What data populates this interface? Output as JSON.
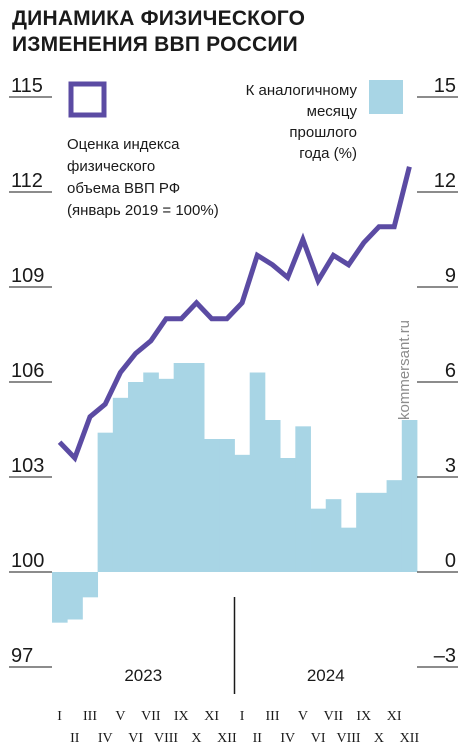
{
  "title": {
    "line1": "ДИНАМИКА ФИЗИЧЕСКОГО",
    "line2": "ИЗМЕНЕНИЯ ВВП РОССИИ"
  },
  "colors": {
    "line": "#5b4ba3",
    "bars": "#a8d5e5",
    "text": "#1a1a1a",
    "credit": "#8c8c8c"
  },
  "credit": "kommersant.ru",
  "chart_data": {
    "type": "bar+line",
    "left_axis": {
      "ticks": [
        "115",
        "112",
        "109",
        "106",
        "103",
        "100",
        "97"
      ],
      "range": [
        97,
        115
      ]
    },
    "right_axis": {
      "ticks": [
        "15",
        "12",
        "9",
        "6",
        "3",
        "0",
        "–3"
      ],
      "range": [
        -3,
        15
      ]
    },
    "legend": {
      "line_label": [
        "Оценка индекса",
        "физического",
        "объема ВВП РФ",
        "(январь 2019 = 100%)"
      ],
      "bar_label": [
        "К аналогичному",
        "месяцу",
        "прошлого",
        "года (%)"
      ]
    },
    "month_labels_top": [
      "I",
      "III",
      "V",
      "VII",
      "IX",
      "XI",
      "I",
      "III",
      "V",
      "VII",
      "IX",
      "XI"
    ],
    "month_labels_bottom": [
      "II",
      "IV",
      "VI",
      "VIII",
      "X",
      "XII",
      "II",
      "IV",
      "VI",
      "VIII",
      "X",
      "XII"
    ],
    "years": [
      "2023",
      "2024"
    ],
    "months": [
      "I",
      "II",
      "III",
      "IV",
      "V",
      "VI",
      "VII",
      "VIII",
      "IX",
      "X",
      "XI",
      "XII",
      "I",
      "II",
      "III",
      "IV",
      "V",
      "VI",
      "VII",
      "VIII",
      "IX",
      "X",
      "XI",
      "XII"
    ],
    "series": [
      {
        "name": "Оценка индекса физического объема ВВП РФ (январь 2019 = 100%)",
        "axis": "left",
        "kind": "line",
        "values": [
          104.1,
          103.6,
          104.9,
          105.3,
          106.3,
          106.9,
          107.3,
          108.0,
          108.0,
          108.5,
          108.0,
          108.0,
          108.5,
          110.0,
          109.7,
          109.3,
          110.5,
          109.2,
          110.0,
          109.7,
          110.4,
          110.9,
          110.9,
          112.8
        ]
      },
      {
        "name": "К аналогичному месяцу прошлого года (%)",
        "axis": "right",
        "kind": "bar",
        "values": [
          -1.6,
          -1.5,
          -0.8,
          4.4,
          5.5,
          6.0,
          6.3,
          6.1,
          6.6,
          6.6,
          4.2,
          4.2,
          3.7,
          6.3,
          4.8,
          3.6,
          4.6,
          2.0,
          2.3,
          1.4,
          2.5,
          2.5,
          2.9,
          4.8
        ]
      }
    ]
  }
}
